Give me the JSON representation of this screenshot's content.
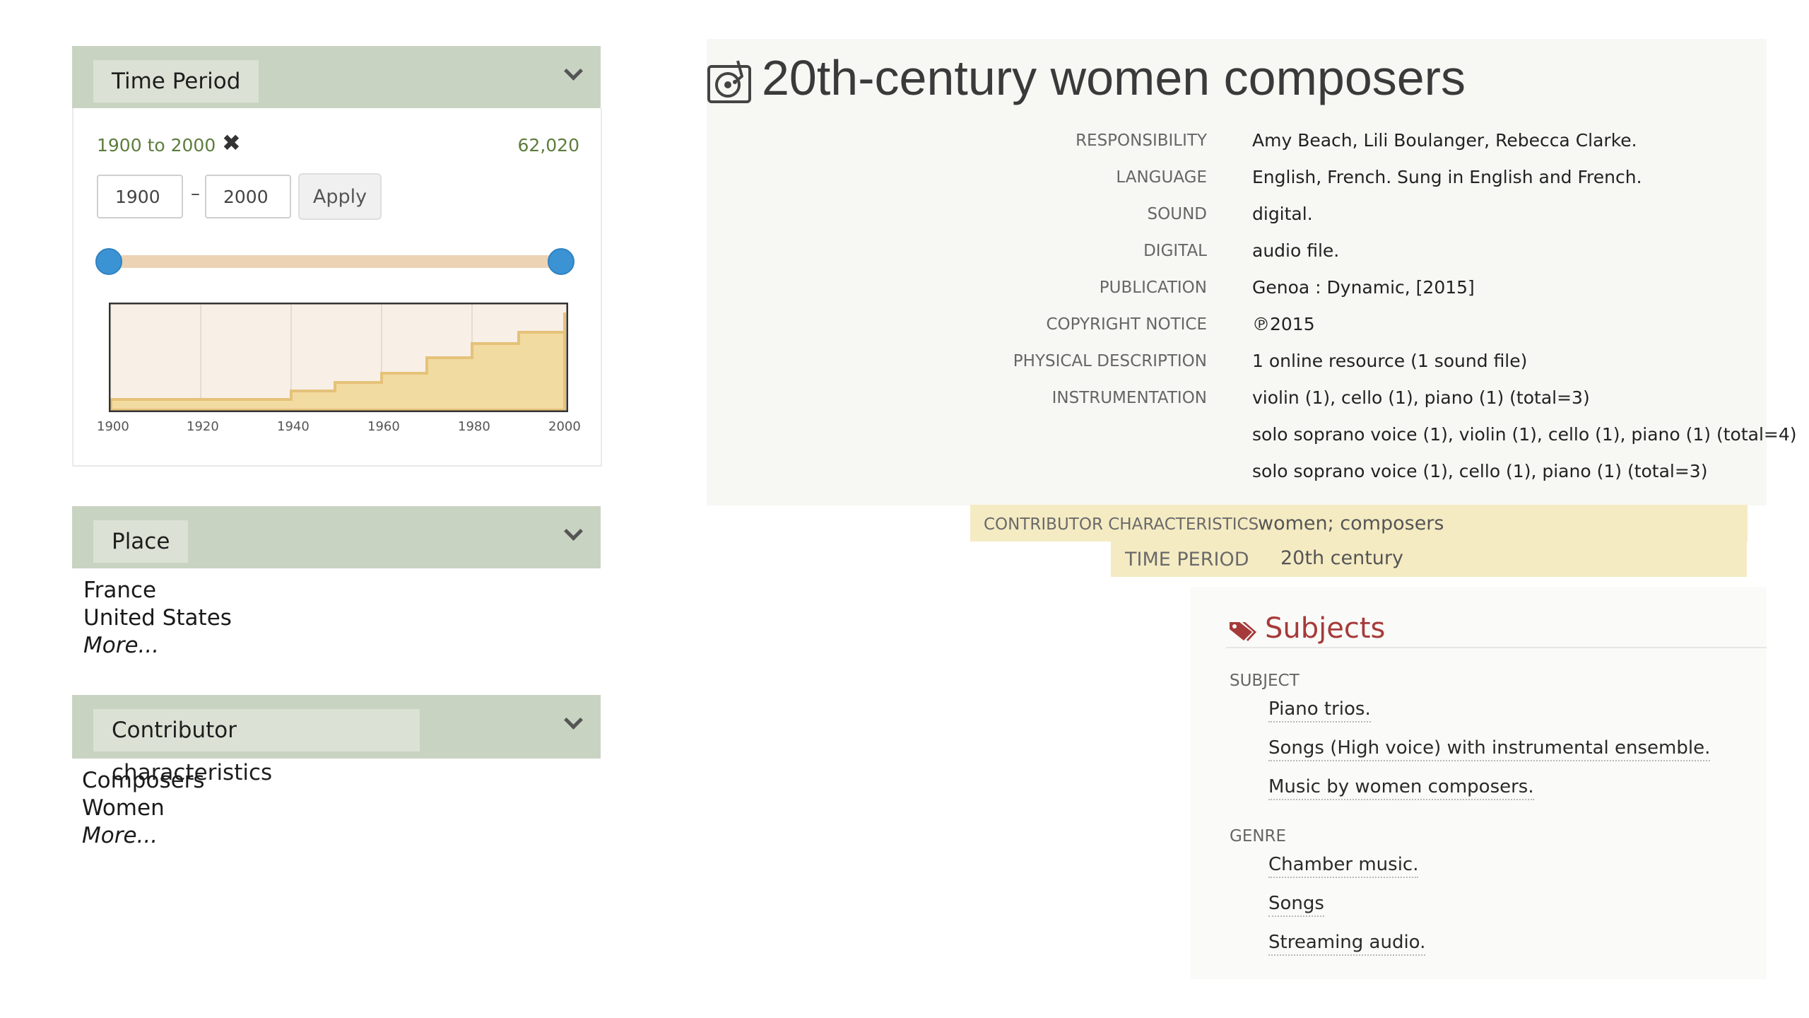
{
  "facets": {
    "time_period": {
      "title": "Time Period",
      "range_text": "1900 to 2000",
      "count": "62,020",
      "from_value": "1900",
      "to_value": "2000",
      "dash": "–",
      "apply_label": "Apply",
      "remove_glyph": "✖",
      "axis_labels": [
        "1900",
        "1920",
        "1940",
        "1960",
        "1980",
        "2000"
      ]
    },
    "place": {
      "title": "Place",
      "items": [
        "France",
        "United States"
      ],
      "more_label": "More..."
    },
    "contributor": {
      "title": "Contributor characteristics",
      "items": [
        "Composers",
        "Women"
      ],
      "more_label": "More..."
    }
  },
  "record": {
    "title": "20th-century women composers",
    "icon": "sound-recording-icon",
    "fields": [
      {
        "label": "Responsibility",
        "value": "Amy Beach, Lili Boulanger, Rebecca Clarke."
      },
      {
        "label": "Language",
        "value": "English, French. Sung in English and French."
      },
      {
        "label": "Sound",
        "value": "digital."
      },
      {
        "label": "Digital",
        "value": "audio file."
      },
      {
        "label": "Publication",
        "value": "Genoa : Dynamic, [2015]"
      },
      {
        "label": "Copyright notice",
        "value": "℗2015"
      },
      {
        "label": "Physical description",
        "value": "1 online resource (1 sound file)"
      },
      {
        "label": "Instrumentation",
        "value": "violin (1), cello (1), piano (1) (total=3)"
      },
      {
        "label": "",
        "value": "solo soprano voice (1), violin (1), cello (1), piano (1) (total=4)"
      },
      {
        "label": "",
        "value": "solo soprano voice (1), cello (1), piano (1) (total=3)"
      }
    ],
    "highlight": {
      "contributor_label": "Contributor characteristics",
      "contributor_value": "women; composers",
      "time_label": "Time period",
      "time_value": "20th century",
      "color": "#f5ebc3"
    }
  },
  "subjects": {
    "title": "Subjects",
    "icon": "tag-icon",
    "subject_heading": "Subject",
    "subject_items": [
      "Piano trios.",
      "Songs (High voice) with instrumental ensemble.",
      "Music by women composers."
    ],
    "genre_heading": "Genre",
    "genre_items": [
      "Chamber music.",
      "Songs",
      "Streaming audio."
    ]
  },
  "colors": {
    "facet_header": "#c9d3c2",
    "slider_handle": "#3b93d4",
    "slider_track": "#ecd3b4",
    "histogram_fill": "#f2dba0",
    "subjects_title": "#a63a3a",
    "range_text": "#5d7d3d"
  }
}
